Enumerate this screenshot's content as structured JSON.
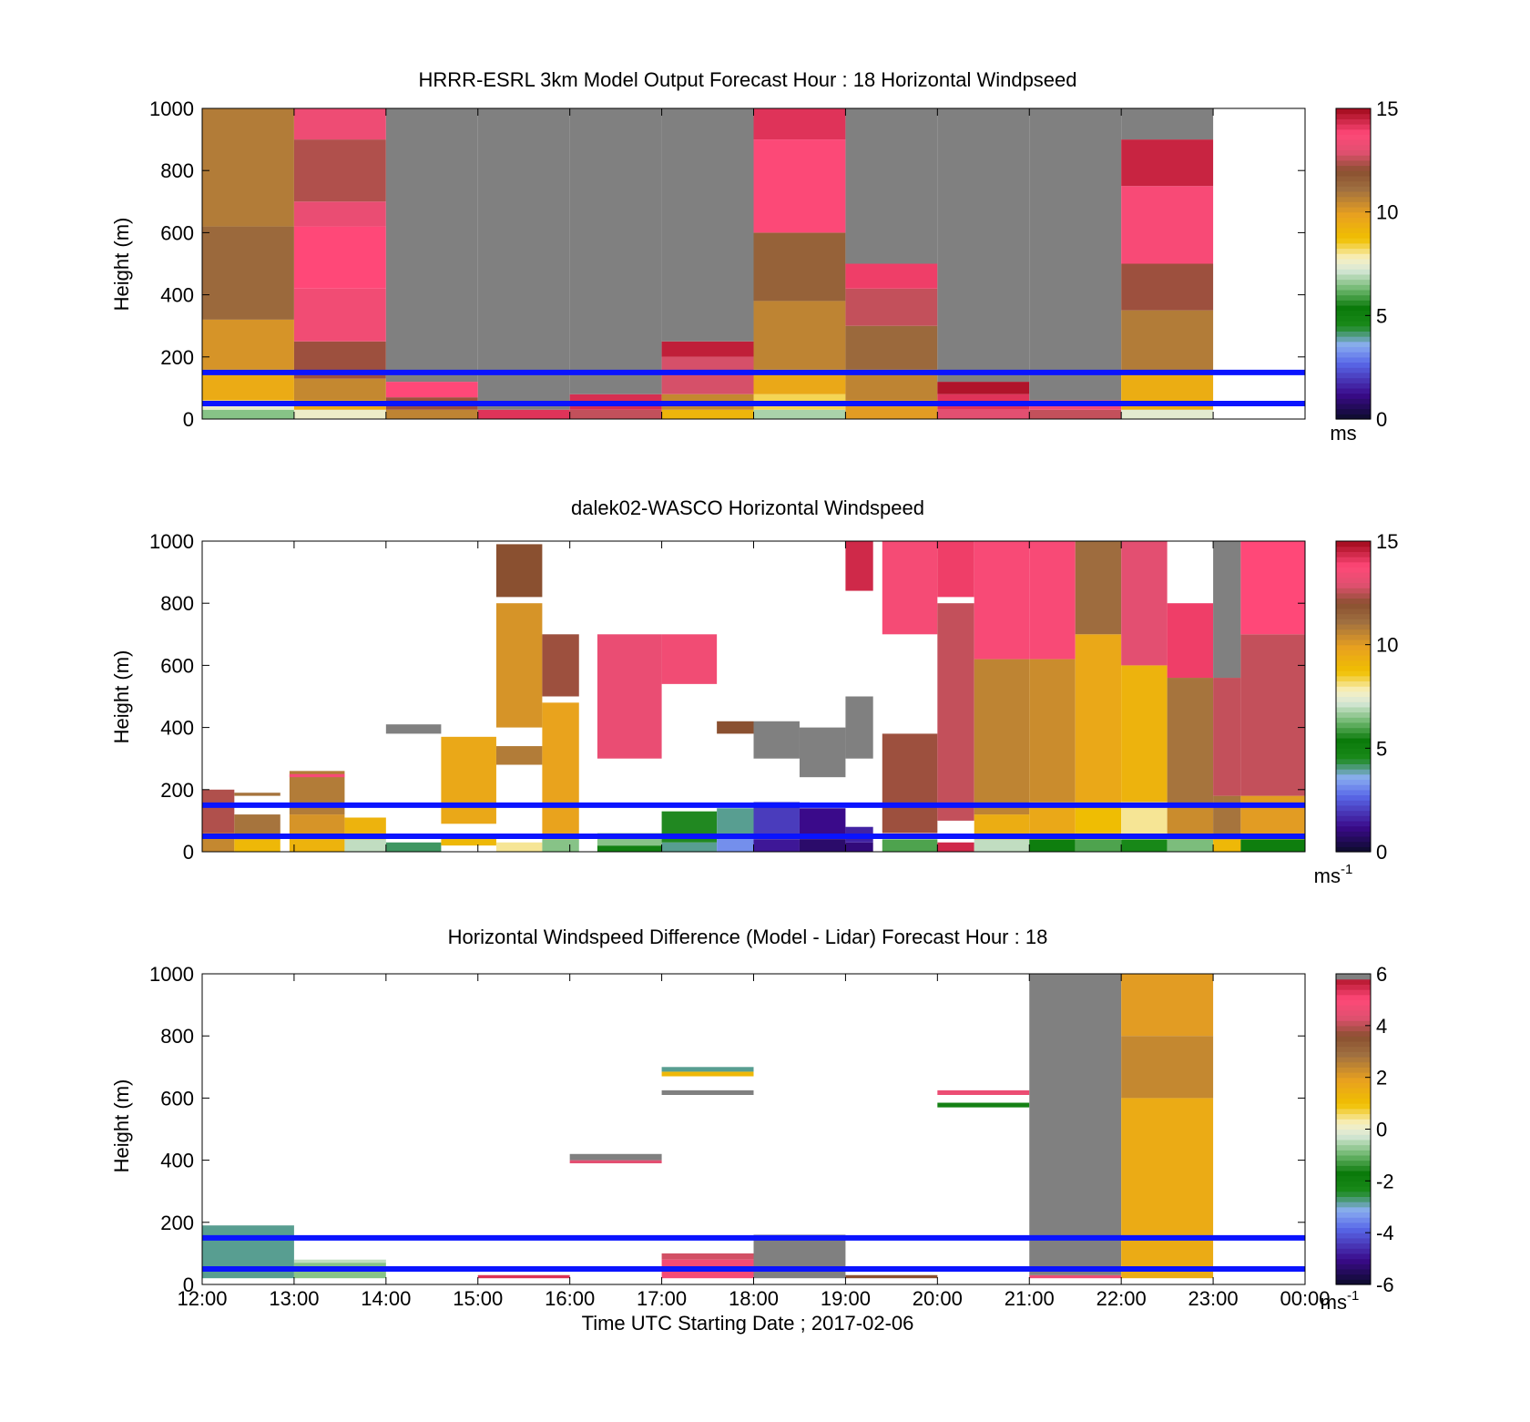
{
  "figure": {
    "xlabel": "Time UTC  Starting Date ; 2017-02-06",
    "x_tick_labels": [
      "12:00",
      "13:00",
      "14:00",
      "15:00",
      "16:00",
      "17:00",
      "18:00",
      "19:00",
      "20:00",
      "21:00",
      "22:00",
      "23:00",
      "00:00"
    ]
  },
  "chart_data": [
    {
      "type": "heatmap",
      "title": "HRRR-ESRL 3km Model Output   Forecast Hour : 18 Horizontal Windpseed",
      "ylabel": "Height (m)",
      "ylim": [
        0,
        1000
      ],
      "y_ticks": [
        0,
        200,
        400,
        600,
        800,
        1000
      ],
      "xlim_hours": [
        12,
        24
      ],
      "colorbar": {
        "min": 0,
        "max": 15,
        "ticks": [
          0,
          5,
          10,
          15
        ],
        "label": "ms",
        "label_sup": "",
        "scale": "speed"
      },
      "reference_lines_m": [
        50,
        150
      ],
      "reference_line_color": "#0a14ff",
      "cells": [
        {
          "t": 12,
          "layers": [
            [
              0,
              30,
              6.5
            ],
            [
              30,
              60,
              7.5
            ],
            [
              60,
              160,
              9.5
            ],
            [
              160,
              320,
              10.2
            ],
            [
              320,
              620,
              11.3
            ],
            [
              620,
              1000,
              10.8
            ]
          ]
        },
        {
          "t": 13,
          "layers": [
            [
              0,
              30,
              7.6
            ],
            [
              30,
              60,
              9.5
            ],
            [
              60,
              130,
              10.5
            ],
            [
              130,
              250,
              12.2
            ],
            [
              250,
              420,
              13.4
            ],
            [
              420,
              620,
              13.8
            ],
            [
              620,
              700,
              13.2
            ],
            [
              700,
              900,
              12.4
            ],
            [
              900,
              1000,
              13.3
            ]
          ]
        },
        {
          "t": 14,
          "layers": [
            [
              0,
              30,
              10.6
            ],
            [
              30,
              70,
              12.2
            ],
            [
              70,
              120,
              13.8
            ]
          ]
        },
        {
          "t": 15,
          "layers": [
            [
              0,
              30,
              14.2
            ]
          ]
        },
        {
          "t": 16,
          "layers": [
            [
              0,
              30,
              12.6
            ],
            [
              30,
              80,
              14.3
            ]
          ]
        },
        {
          "t": 17,
          "layers": [
            [
              0,
              30,
              9.1
            ],
            [
              30,
              80,
              10.5
            ],
            [
              80,
              200,
              12.8
            ],
            [
              200,
              250,
              14.6
            ]
          ]
        },
        {
          "t": 18,
          "layers": [
            [
              0,
              30,
              6.8
            ],
            [
              30,
              80,
              8.3
            ],
            [
              80,
              160,
              9.6
            ],
            [
              160,
              380,
              10.6
            ],
            [
              380,
              600,
              11.5
            ],
            [
              600,
              900,
              13.7
            ],
            [
              900,
              1000,
              14.2
            ]
          ]
        },
        {
          "t": 19,
          "layers": [
            [
              0,
              60,
              10.0
            ],
            [
              60,
              160,
              10.6
            ],
            [
              160,
              300,
              11.3
            ],
            [
              300,
              420,
              12.6
            ],
            [
              420,
              500,
              14.0
            ]
          ]
        },
        {
          "t": 20,
          "layers": [
            [
              0,
              30,
              13.0
            ],
            [
              30,
              80,
              14.2
            ],
            [
              80,
              120,
              14.8
            ]
          ]
        },
        {
          "t": 21,
          "layers": [
            [
              0,
              30,
              12.6
            ],
            [
              30,
              60,
              13.5
            ]
          ]
        },
        {
          "t": 22,
          "layers": [
            [
              0,
              30,
              7.4
            ],
            [
              30,
              150,
              9.4
            ],
            [
              150,
              350,
              10.8
            ],
            [
              350,
              500,
              12.2
            ],
            [
              500,
              750,
              13.6
            ],
            [
              750,
              900,
              14.5
            ]
          ]
        }
      ],
      "missing_above_cells_color": "#808080",
      "empty_hours": [
        23
      ]
    },
    {
      "type": "heatmap",
      "title": "dalek02-WASCO  Horizontal Windspeed",
      "ylabel": "Height (m)",
      "ylim": [
        0,
        1000
      ],
      "y_ticks": [
        0,
        200,
        400,
        600,
        800,
        1000
      ],
      "xlim_hours": [
        12,
        24
      ],
      "colorbar": {
        "min": 0,
        "max": 15,
        "ticks": [
          0,
          5,
          10,
          15
        ],
        "label": "ms",
        "label_sup": "-1",
        "scale": "speed"
      },
      "reference_lines_m": [
        50,
        150
      ],
      "reference_line_color": "#0a14ff",
      "note_values": "observations shown as thin time-height bins; sparse above 200 m before 20:00",
      "profiles": [
        {
          "t0": 12.0,
          "t1": 12.35,
          "segments": [
            [
              0,
              60,
              10.5
            ],
            [
              60,
              200,
              12.4
            ]
          ]
        },
        {
          "t0": 12.35,
          "t1": 12.85,
          "segments": [
            [
              0,
              40,
              9.0
            ],
            [
              40,
              120,
              11.0
            ],
            [
              180,
              190,
              11.0
            ]
          ]
        },
        {
          "t0": 12.95,
          "t1": 13.55,
          "segments": [
            [
              0,
              40,
              9.2
            ],
            [
              40,
              120,
              10.2
            ],
            [
              120,
              260,
              10.8
            ],
            [
              240,
              250,
              13.6
            ]
          ]
        },
        {
          "t0": 13.55,
          "t1": 14.0,
          "segments": [
            [
              0,
              40,
              7.0
            ],
            [
              40,
              110,
              9.2
            ]
          ]
        },
        {
          "t0": 14.0,
          "t1": 14.6,
          "segments": [
            [
              0,
              30,
              4.2
            ],
            [
              380,
              410,
              0
            ]
          ]
        },
        {
          "t0": 14.6,
          "t1": 15.2,
          "segments": [
            [
              20,
              50,
              9.0
            ],
            [
              90,
              370,
              9.6
            ]
          ]
        },
        {
          "t0": 15.2,
          "t1": 15.7,
          "segments": [
            [
              0,
              30,
              8.0
            ],
            [
              280,
              340,
              10.8
            ],
            [
              400,
              800,
              10.2
            ],
            [
              820,
              990,
              12.0
            ]
          ]
        },
        {
          "t0": 15.7,
          "t1": 16.1,
          "segments": [
            [
              0,
              40,
              6.5
            ],
            [
              40,
              480,
              9.8
            ],
            [
              500,
              700,
              12.2
            ]
          ]
        },
        {
          "t0": 16.3,
          "t1": 17.0,
          "segments": [
            [
              0,
              20,
              5.0
            ],
            [
              20,
              60,
              6.5
            ],
            [
              300,
              700,
              13.2
            ]
          ]
        },
        {
          "t0": 17.0,
          "t1": 17.6,
          "segments": [
            [
              0,
              30,
              4.0
            ],
            [
              30,
              130,
              5.6
            ],
            [
              540,
              700,
              13.4
            ]
          ]
        },
        {
          "t0": 17.6,
          "t1": 18.0,
          "segments": [
            [
              0,
              50,
              3.2
            ],
            [
              50,
              140,
              4.0
            ],
            [
              380,
              420,
              12.0
            ]
          ]
        },
        {
          "t0": 18.0,
          "t1": 18.5,
          "segments": [
            [
              0,
              40,
              1.4
            ],
            [
              40,
              160,
              2.0
            ],
            [
              300,
              420,
              0
            ]
          ]
        },
        {
          "t0": 18.5,
          "t1": 19.0,
          "segments": [
            [
              0,
              40,
              0.8
            ],
            [
              40,
              140,
              1.2
            ],
            [
              240,
              400,
              0
            ]
          ]
        },
        {
          "t0": 19.0,
          "t1": 19.3,
          "segments": [
            [
              0,
              30,
              1.0
            ],
            [
              30,
              80,
              1.6
            ],
            [
              300,
              500,
              0
            ],
            [
              840,
              1000,
              14.4
            ]
          ]
        },
        {
          "t0": 19.4,
          "t1": 20.0,
          "segments": [
            [
              0,
              40,
              6.0
            ],
            [
              60,
              380,
              12.2
            ],
            [
              700,
              1000,
              13.5
            ]
          ]
        },
        {
          "t0": 20.0,
          "t1": 20.4,
          "segments": [
            [
              0,
              30,
              14.4
            ],
            [
              100,
              800,
              12.6
            ],
            [
              820,
              1000,
              14.0
            ]
          ]
        },
        {
          "t0": 20.4,
          "t1": 21.0,
          "segments": [
            [
              0,
              40,
              7.0
            ],
            [
              40,
              120,
              9.4
            ],
            [
              120,
              620,
              10.6
            ],
            [
              620,
              1000,
              13.6
            ]
          ]
        },
        {
          "t0": 21.0,
          "t1": 21.5,
          "segments": [
            [
              0,
              40,
              5.2
            ],
            [
              40,
              160,
              9.6
            ],
            [
              160,
              620,
              10.4
            ],
            [
              620,
              1000,
              13.6
            ]
          ]
        },
        {
          "t0": 21.5,
          "t1": 22.0,
          "segments": [
            [
              0,
              40,
              6.0
            ],
            [
              40,
              160,
              8.8
            ],
            [
              160,
              700,
              9.6
            ],
            [
              700,
              1000,
              11.2
            ]
          ]
        },
        {
          "t0": 22.0,
          "t1": 22.5,
          "segments": [
            [
              0,
              40,
              4.6
            ],
            [
              40,
              160,
              8.0
            ],
            [
              160,
              600,
              9.2
            ],
            [
              600,
              1000,
              13.0
            ]
          ]
        },
        {
          "t0": 22.5,
          "t1": 23.0,
          "segments": [
            [
              0,
              40,
              6.4
            ],
            [
              40,
              150,
              10.4
            ],
            [
              150,
              560,
              11.0
            ],
            [
              560,
              800,
              14.0
            ]
          ]
        },
        {
          "t0": 23.0,
          "t1": 23.3,
          "segments": [
            [
              0,
              40,
              9.0
            ],
            [
              40,
              180,
              11.0
            ],
            [
              180,
              560,
              12.6
            ],
            [
              560,
              1000,
              0
            ]
          ]
        },
        {
          "t0": 23.3,
          "t1": 24.0,
          "segments": [
            [
              0,
              40,
              5.2
            ],
            [
              40,
              180,
              10.0
            ],
            [
              180,
              700,
              12.6
            ],
            [
              700,
              1000,
              13.8
            ]
          ]
        }
      ]
    },
    {
      "type": "heatmap",
      "title": "Horizontal Windspeed Difference (Model - Lidar) Forecast Hour : 18",
      "ylabel": "Height (m)",
      "ylim": [
        0,
        1000
      ],
      "y_ticks": [
        0,
        200,
        400,
        600,
        800,
        1000
      ],
      "xlim_hours": [
        12,
        24
      ],
      "colorbar": {
        "min": -6,
        "max": 6,
        "ticks": [
          -6,
          -4,
          -2,
          0,
          2,
          4,
          6
        ],
        "label": "ms",
        "label_sup": "-1",
        "scale": "diff"
      },
      "reference_lines_m": [
        50,
        150
      ],
      "reference_line_color": "#0a14ff",
      "cells": [
        {
          "t0": 12,
          "t1": 13,
          "layers": [
            [
              20,
              190,
              -2.8
            ]
          ]
        },
        {
          "t0": 13,
          "t1": 14,
          "layers": [
            [
              20,
              70,
              -0.8
            ],
            [
              70,
              80,
              -0.4
            ]
          ]
        },
        {
          "t0": 15,
          "t1": 16,
          "layers": [
            [
              20,
              30,
              5.4
            ]
          ]
        },
        {
          "t0": 16,
          "t1": 17,
          "layers": [
            [
              390,
              400,
              4.4
            ],
            [
              400,
              420,
              5.8
            ]
          ]
        },
        {
          "t0": 17,
          "t1": 18,
          "layers": [
            [
              20,
              80,
              4.8
            ],
            [
              80,
              100,
              4.2
            ],
            [
              610,
              625,
              5.8
            ],
            [
              670,
              685,
              1.2
            ],
            [
              685,
              700,
              -2.8
            ]
          ]
        },
        {
          "t0": 18,
          "t1": 19,
          "layers": [
            [
              20,
              160,
              5.8
            ]
          ]
        },
        {
          "t0": 19,
          "t1": 20,
          "layers": [
            [
              20,
              30,
              3.6
            ]
          ]
        },
        {
          "t0": 20,
          "t1": 21,
          "layers": [
            [
              570,
              585,
              -1.6
            ],
            [
              610,
              625,
              4.6
            ]
          ]
        },
        {
          "t0": 21,
          "t1": 22,
          "layers": [
            [
              20,
              30,
              4.6
            ],
            [
              30,
              1000,
              5.8
            ]
          ]
        },
        {
          "t0": 22,
          "t1": 23,
          "layers": [
            [
              20,
              600,
              1.6
            ],
            [
              600,
              800,
              2.4
            ],
            [
              800,
              1000,
              2.0
            ]
          ]
        }
      ]
    }
  ]
}
